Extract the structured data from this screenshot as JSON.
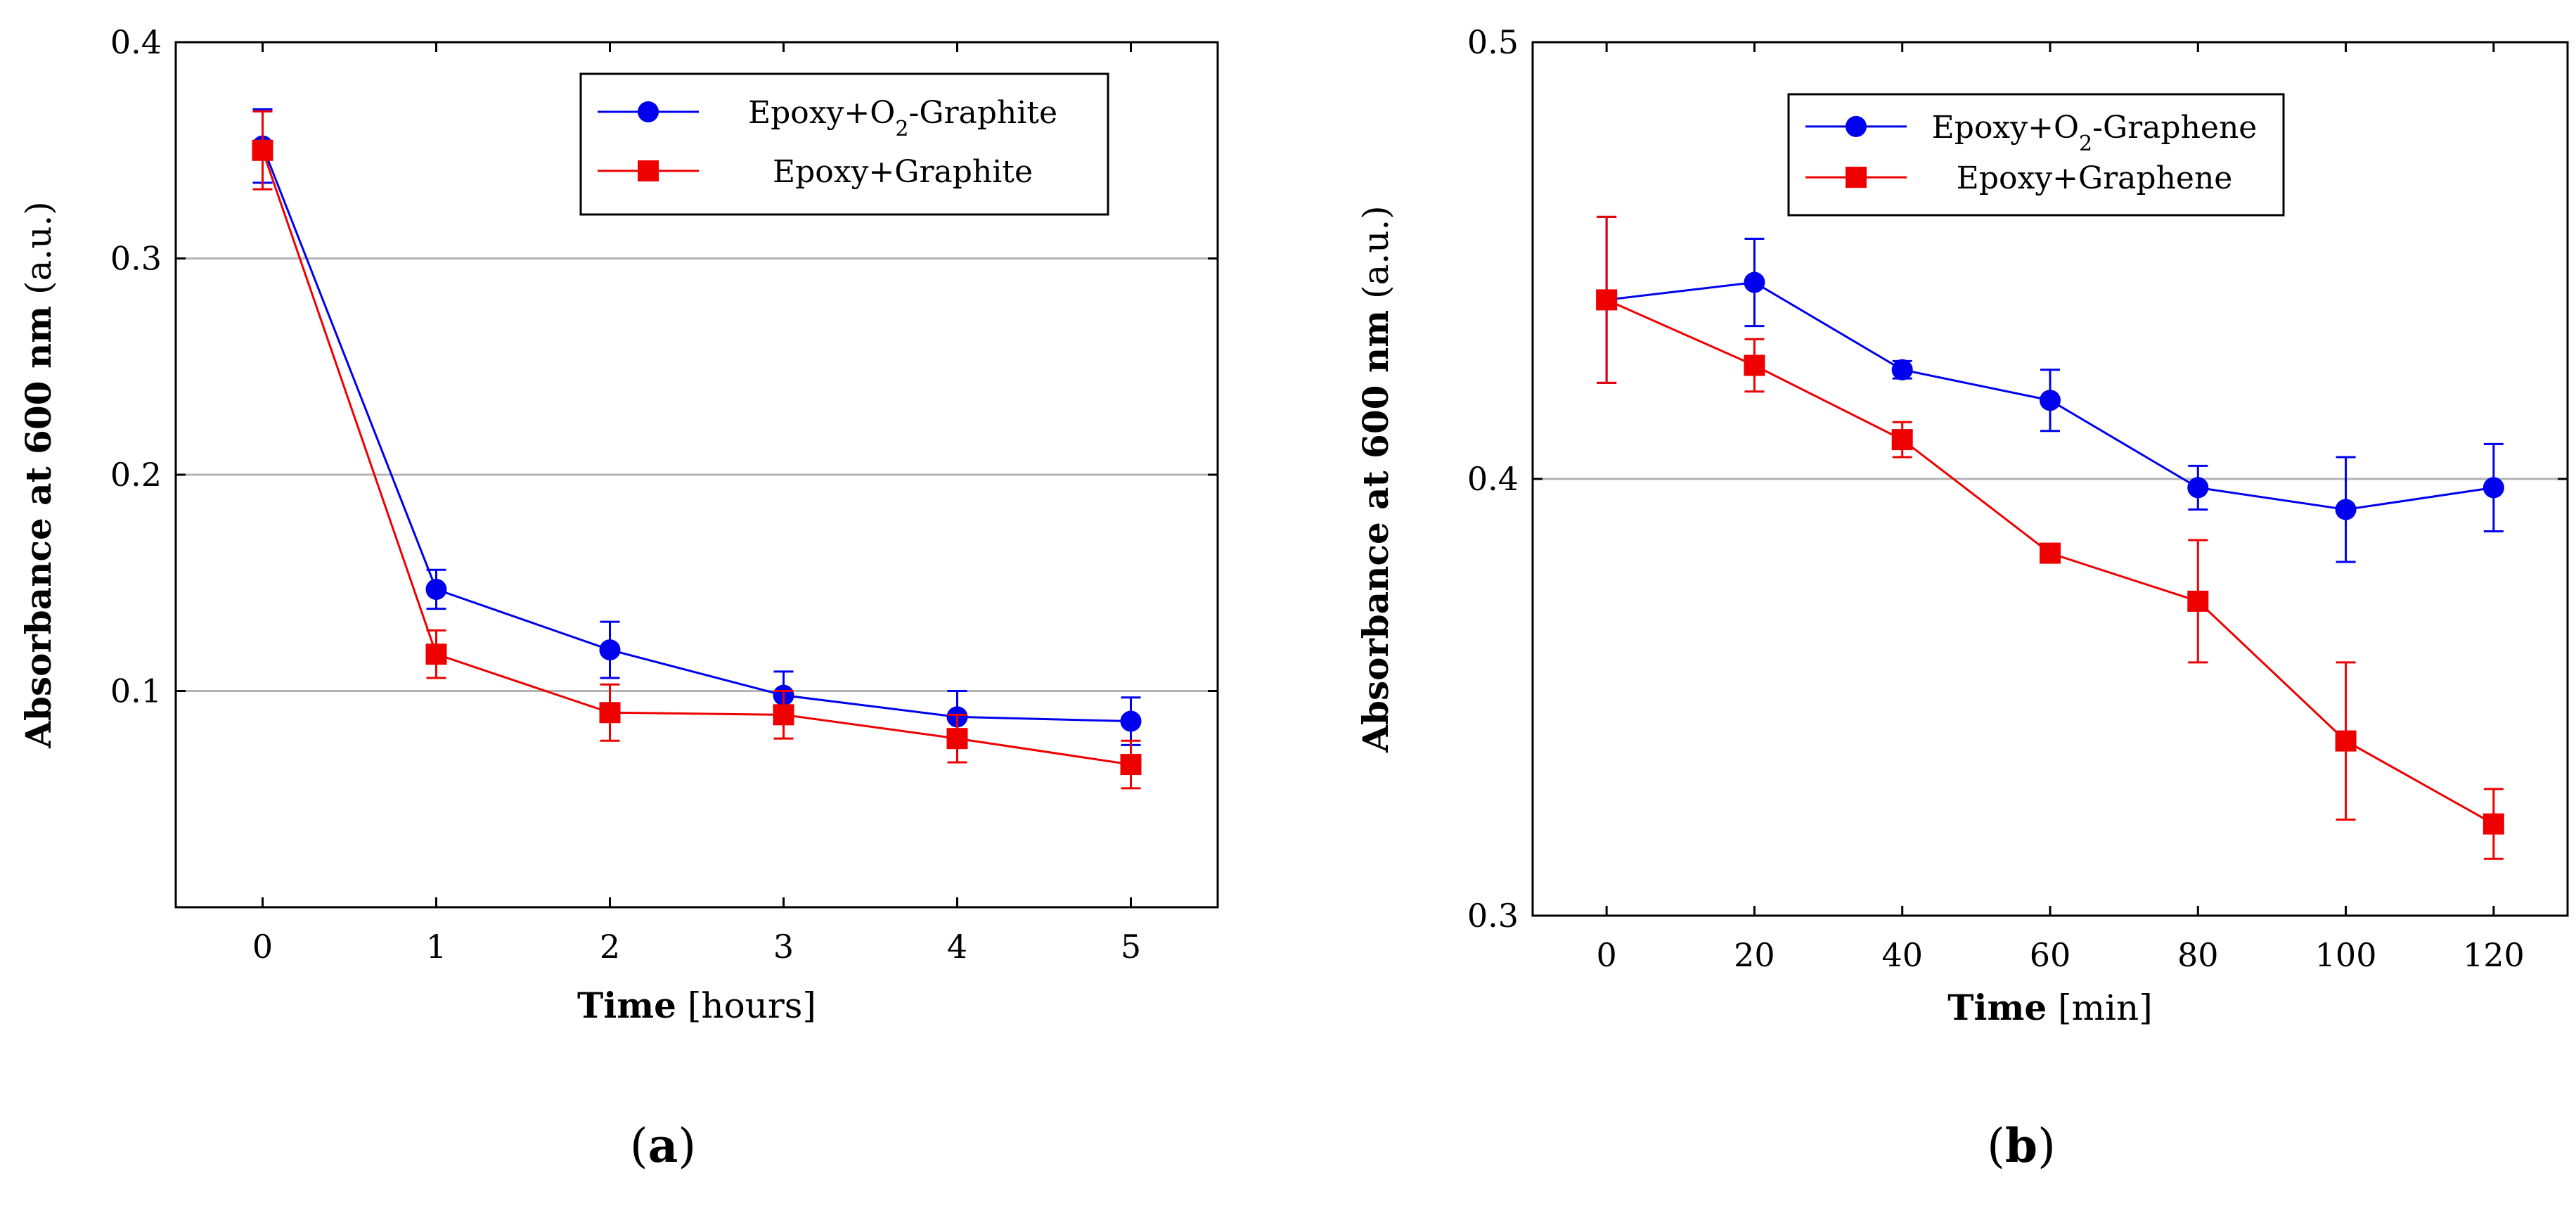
{
  "colors": {
    "series_blue": "#0000ee",
    "series_red": "#ee0000",
    "grid": "#b3b3b3",
    "axis": "#000000"
  },
  "chart_data": [
    {
      "type": "line",
      "panel_label": "a",
      "xlabel_bold": "Time",
      "xlabel_unit": "[hours]",
      "ylabel_bold": "Absorbance at 600 nm",
      "ylabel_unit": "(a.u.)",
      "xlim": [
        -0.5,
        5.5
      ],
      "ylim": [
        0.0,
        0.4
      ],
      "xticks": [
        0,
        1,
        2,
        3,
        4,
        5
      ],
      "xtick_labels": [
        "0",
        "1",
        "2",
        "3",
        "4",
        "5"
      ],
      "yticks": [
        0.1,
        0.2,
        0.3,
        0.4
      ],
      "ytick_labels": [
        "0.1",
        "0.2",
        "0.3",
        "0.4"
      ],
      "grid": "horizontal",
      "legend_position": "top-right",
      "series": [
        {
          "name_prefix": "Epoxy+O",
          "name_sub": "2",
          "name_suffix": "-Graphite",
          "color": "blue",
          "marker": "circle",
          "x": [
            0,
            1,
            2,
            3,
            4,
            5
          ],
          "y": [
            0.352,
            0.147,
            0.119,
            0.098,
            0.088,
            0.086
          ],
          "err": [
            0.017,
            0.009,
            0.013,
            0.011,
            0.012,
            0.011
          ]
        },
        {
          "name_prefix": "Epoxy+Graphite",
          "name_sub": "",
          "name_suffix": "",
          "color": "red",
          "marker": "square",
          "x": [
            0,
            1,
            2,
            3,
            4,
            5
          ],
          "y": [
            0.35,
            0.117,
            0.09,
            0.089,
            0.078,
            0.066
          ],
          "err": [
            0.018,
            0.011,
            0.013,
            0.011,
            0.011,
            0.011
          ]
        }
      ]
    },
    {
      "type": "line",
      "panel_label": "b",
      "xlabel_bold": "Time",
      "xlabel_unit": "[min]",
      "ylabel_bold": "Absorbance at 600 nm",
      "ylabel_unit": "(a.u.)",
      "xlim": [
        -10,
        130
      ],
      "ylim": [
        0.3,
        0.5
      ],
      "xticks": [
        0,
        20,
        40,
        60,
        80,
        100,
        120
      ],
      "xtick_labels": [
        "0",
        "20",
        "40",
        "60",
        "80",
        "100",
        "120"
      ],
      "yticks": [
        0.3,
        0.4,
        0.5
      ],
      "ytick_labels": [
        "0.3",
        "0.4",
        "0.5"
      ],
      "grid": "horizontal",
      "legend_position": "top-left",
      "series": [
        {
          "name_prefix": "Epoxy+O",
          "name_sub": "2",
          "name_suffix": "-Graphene",
          "color": "blue",
          "marker": "circle",
          "x": [
            0,
            20,
            40,
            60,
            80,
            100,
            120
          ],
          "y": [
            0.441,
            0.445,
            0.425,
            0.418,
            0.398,
            0.393,
            0.398
          ],
          "err": [
            0.019,
            0.01,
            0.002,
            0.007,
            0.005,
            0.012,
            0.01
          ]
        },
        {
          "name_prefix": "Epoxy+Graphene",
          "name_sub": "",
          "name_suffix": "",
          "color": "red",
          "marker": "square",
          "x": [
            0,
            20,
            40,
            60,
            80,
            100,
            120
          ],
          "y": [
            0.441,
            0.426,
            0.409,
            0.383,
            0.372,
            0.34,
            0.321
          ],
          "err": [
            0.019,
            0.006,
            0.004,
            0.001,
            0.014,
            0.018,
            0.008
          ]
        }
      ]
    }
  ]
}
